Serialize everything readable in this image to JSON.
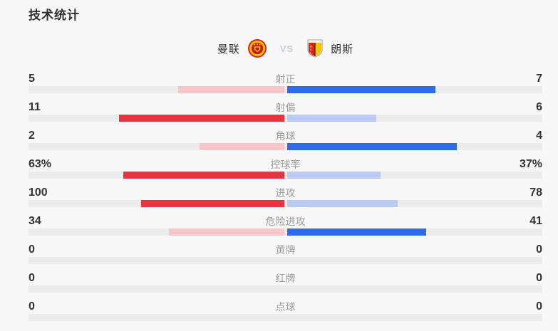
{
  "title": "技术统计",
  "header": {
    "home_name": "曼联",
    "away_name": "朗斯",
    "vs": "VS"
  },
  "colors": {
    "background": "#f7f7f8",
    "track": "#ececec",
    "home_win": "#e3363f",
    "home_lose": "#f8c5ca",
    "away_win": "#2f6be3",
    "away_lose": "#b9cbf4",
    "title_text": "#2f2f2f",
    "value_text": "#333333",
    "label_text": "#9c9c9c",
    "vs_text": "#c9cdd2"
  },
  "chart_data": {
    "type": "bar",
    "title": "技术统计",
    "orientation": "horizontal-diverging-from-center",
    "legend_position": "top-center",
    "teams": [
      "曼联",
      "朗斯"
    ],
    "rows": [
      {
        "label": "射正",
        "home": 5,
        "away": 7,
        "home_display": "5",
        "away_display": "7"
      },
      {
        "label": "射偏",
        "home": 11,
        "away": 6,
        "home_display": "11",
        "away_display": "6"
      },
      {
        "label": "角球",
        "home": 2,
        "away": 4,
        "home_display": "2",
        "away_display": "4"
      },
      {
        "label": "控球率",
        "home": 63,
        "away": 37,
        "home_display": "63%",
        "away_display": "37%"
      },
      {
        "label": "进攻",
        "home": 100,
        "away": 78,
        "home_display": "100",
        "away_display": "78"
      },
      {
        "label": "危险进攻",
        "home": 34,
        "away": 41,
        "home_display": "34",
        "away_display": "41"
      },
      {
        "label": "黄牌",
        "home": 0,
        "away": 0,
        "home_display": "0",
        "away_display": "0"
      },
      {
        "label": "红牌",
        "home": 0,
        "away": 0,
        "home_display": "0",
        "away_display": "0"
      },
      {
        "label": "点球",
        "home": 0,
        "away": 0,
        "home_display": "0",
        "away_display": "0"
      }
    ],
    "bar_rule": "bar length = value / (home+away) of half track width; winner side solid color, loser side light color; zero-zero rows show empty track"
  }
}
